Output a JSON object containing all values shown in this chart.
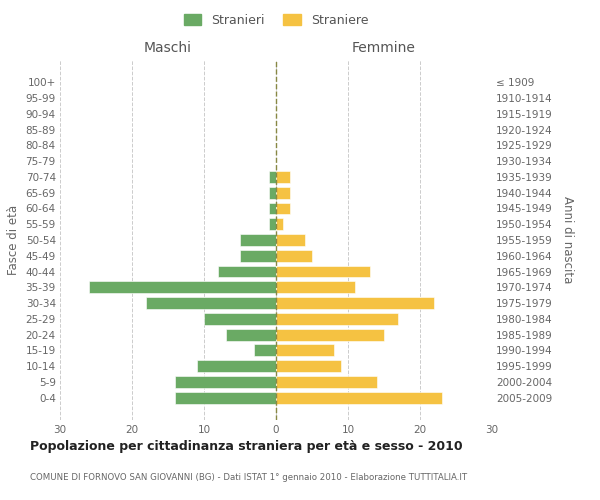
{
  "age_groups_bottom_to_top": [
    "0-4",
    "5-9",
    "10-14",
    "15-19",
    "20-24",
    "25-29",
    "30-34",
    "35-39",
    "40-44",
    "45-49",
    "50-54",
    "55-59",
    "60-64",
    "65-69",
    "70-74",
    "75-79",
    "80-84",
    "85-89",
    "90-94",
    "95-99",
    "100+"
  ],
  "birth_years_bottom_to_top": [
    "2005-2009",
    "2000-2004",
    "1995-1999",
    "1990-1994",
    "1985-1989",
    "1980-1984",
    "1975-1979",
    "1970-1974",
    "1965-1969",
    "1960-1964",
    "1955-1959",
    "1950-1954",
    "1945-1949",
    "1940-1944",
    "1935-1939",
    "1930-1934",
    "1925-1929",
    "1920-1924",
    "1915-1919",
    "1910-1914",
    "≤ 1909"
  ],
  "maschi_bottom_to_top": [
    14,
    14,
    11,
    3,
    7,
    10,
    18,
    26,
    8,
    5,
    5,
    1,
    1,
    1,
    1,
    0,
    0,
    0,
    0,
    0,
    0
  ],
  "femmine_bottom_to_top": [
    23,
    14,
    9,
    8,
    15,
    17,
    22,
    11,
    13,
    5,
    4,
    1,
    2,
    2,
    2,
    0,
    0,
    0,
    0,
    0,
    0
  ],
  "color_maschi": "#6aaa64",
  "color_femmine": "#f5c242",
  "title": "Popolazione per cittadinanza straniera per età e sesso - 2010",
  "subtitle": "COMUNE DI FORNOVO SAN GIOVANNI (BG) - Dati ISTAT 1° gennaio 2010 - Elaborazione TUTTITALIA.IT",
  "header_left": "Maschi",
  "header_right": "Femmine",
  "ylabel_left": "Fasce di età",
  "ylabel_right": "Anni di nascita",
  "legend_maschi": "Stranieri",
  "legend_femmine": "Straniere",
  "xlim": 30,
  "background_color": "#ffffff",
  "grid_color": "#cccccc"
}
